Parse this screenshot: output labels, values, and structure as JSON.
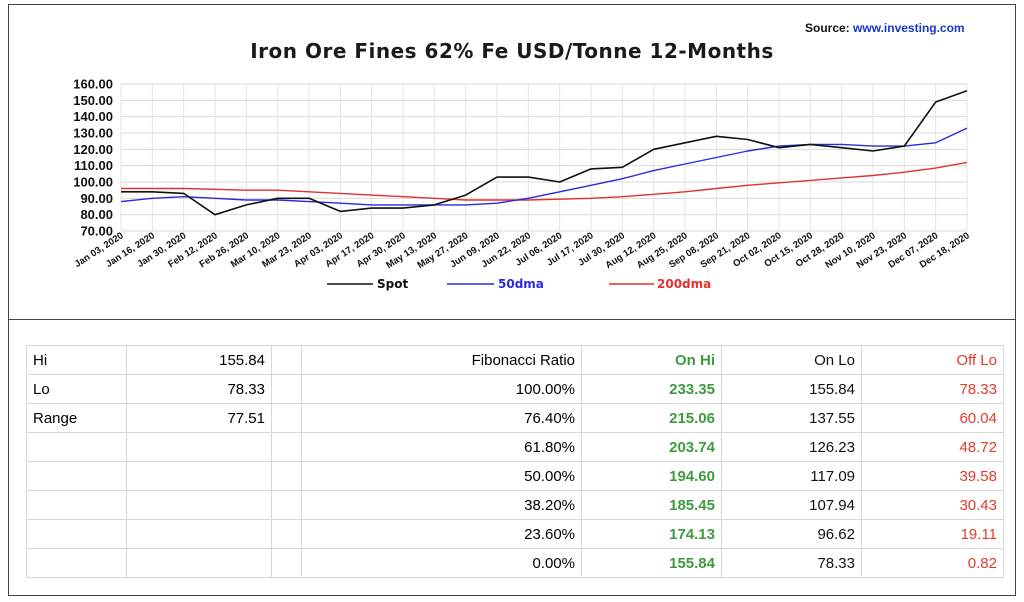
{
  "source": {
    "label": "Source:",
    "link": "www.investing.com"
  },
  "colors": {
    "spot": "#111111",
    "dma50": "#2a2ad8",
    "dma200": "#e03030",
    "on_hi": "#3f9a3f",
    "off_lo": "#e23a2e"
  },
  "chart_data": {
    "type": "line",
    "title": "Iron Ore Fines 62% Fe USD/Tonne  12-Months",
    "xlabel": "",
    "ylabel": "",
    "ylim": [
      70,
      160
    ],
    "yticks": [
      "70.00",
      "80.00",
      "90.00",
      "100.00",
      "110.00",
      "120.00",
      "130.00",
      "140.00",
      "150.00",
      "160.00"
    ],
    "x": [
      "Jan 03, 2020",
      "Jan 16, 2020",
      "Jan 30, 2020",
      "Feb 12, 2020",
      "Feb 26, 2020",
      "Mar 10, 2020",
      "Mar 23, 2020",
      "Apr 03, 2020",
      "Apr 17, 2020",
      "Apr 30, 2020",
      "May 13, 2020",
      "May 27, 2020",
      "Jun 09, 2020",
      "Jun 22, 2020",
      "Jul 06, 2020",
      "Jul 17, 2020",
      "Jul 30, 2020",
      "Aug 12, 2020",
      "Aug 25, 2020",
      "Sep 08, 2020",
      "Sep 21, 2020",
      "Oct 02, 2020",
      "Oct 15, 2020",
      "Oct 28, 2020",
      "Nov 10, 2020",
      "Nov 23, 2020",
      "Dec 07, 2020",
      "Dec 18, 2020"
    ],
    "grid": true,
    "legend": "bottom",
    "series": [
      {
        "name": "Spot",
        "values": [
          94,
          94,
          93,
          80,
          86,
          90,
          90,
          82,
          84,
          84,
          86,
          92,
          103,
          103,
          100,
          108,
          109,
          120,
          124,
          128,
          126,
          121,
          123,
          121,
          119,
          122,
          149,
          155.84
        ]
      },
      {
        "name": "50dma",
        "values": [
          88,
          90,
          91,
          90,
          89,
          89,
          88,
          87,
          86,
          86,
          86,
          86,
          87,
          90,
          94,
          98,
          102,
          107,
          111,
          115,
          119,
          122,
          123,
          123,
          122,
          122,
          124,
          133
        ]
      },
      {
        "name": "200dma",
        "values": [
          96,
          96,
          96,
          95.5,
          95,
          95,
          94,
          93,
          92,
          91,
          90,
          89,
          89,
          89,
          89.5,
          90,
          91,
          92.5,
          94,
          96,
          98,
          99.5,
          101,
          102.5,
          104,
          106,
          108.5,
          112
        ]
      }
    ]
  },
  "table": {
    "summary": [
      {
        "label": "Hi",
        "value": "155.84"
      },
      {
        "label": "Lo",
        "value": "78.33"
      },
      {
        "label": "Range",
        "value": "77.51"
      }
    ],
    "headers": {
      "ratio": "Fibonacci  Ratio",
      "on_hi": "On Hi",
      "on_lo": "On Lo",
      "off_lo": "Off Lo"
    },
    "rows": [
      {
        "ratio": "100.00%",
        "on_hi": "233.35",
        "on_lo": "155.84",
        "off_lo": "78.33"
      },
      {
        "ratio": "76.40%",
        "on_hi": "215.06",
        "on_lo": "137.55",
        "off_lo": "60.04"
      },
      {
        "ratio": "61.80%",
        "on_hi": "203.74",
        "on_lo": "126.23",
        "off_lo": "48.72"
      },
      {
        "ratio": "50.00%",
        "on_hi": "194.60",
        "on_lo": "117.09",
        "off_lo": "39.58"
      },
      {
        "ratio": "38.20%",
        "on_hi": "185.45",
        "on_lo": "107.94",
        "off_lo": "30.43"
      },
      {
        "ratio": "23.60%",
        "on_hi": "174.13",
        "on_lo": "96.62",
        "off_lo": "19.11"
      },
      {
        "ratio": "0.00%",
        "on_hi": "155.84",
        "on_lo": "78.33",
        "off_lo": "0.82"
      }
    ]
  }
}
